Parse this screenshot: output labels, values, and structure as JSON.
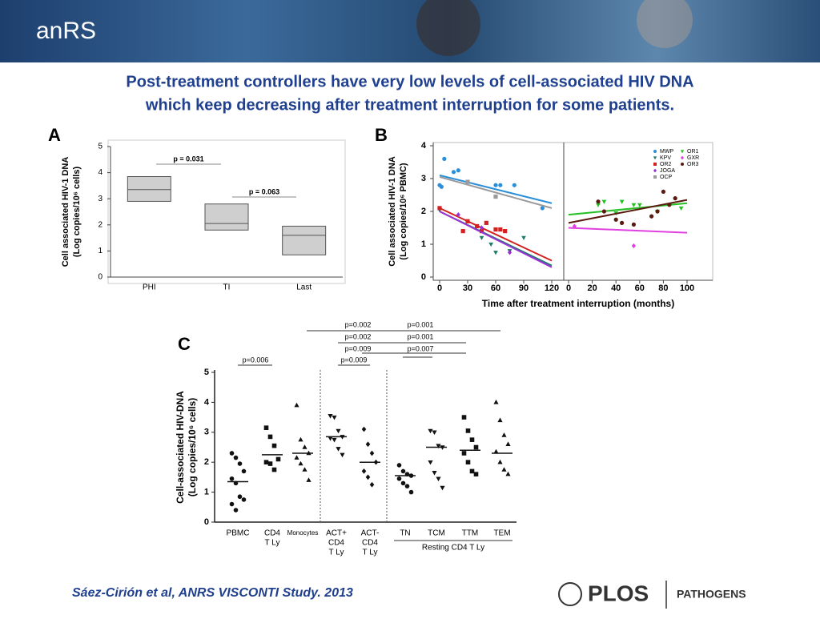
{
  "header": {
    "logo": "anRS"
  },
  "title": [
    "Post-treatment controllers have very low levels of cell-associated HIV DNA",
    "which keep decreasing after treatment interruption for some patients."
  ],
  "chart_data": [
    {
      "type": "box",
      "panel_label": "A",
      "ylabel": [
        "Cell associated HIV-1 DNA",
        "(Log copies/10⁶ cells)"
      ],
      "categories": [
        "PHI",
        "TI",
        "Last"
      ],
      "low": [
        2.9,
        1.8,
        0.85
      ],
      "high": [
        3.85,
        2.8,
        1.95
      ],
      "median": [
        3.35,
        2.05,
        1.6
      ],
      "color": "#cfcfcf",
      "ylim": [
        0,
        5
      ],
      "yticks": [
        0,
        1,
        2,
        3,
        4,
        5
      ],
      "annotations": [
        "p = 0.031",
        "p = 0.063"
      ]
    },
    {
      "type": "scatter",
      "panel_label": "B",
      "ylabel": [
        "Cell associated HIV-1 DNA",
        "(Log copies/10⁶ PBMC)"
      ],
      "xlabel": "Time after treatment interruption (months)",
      "ylim": [
        0,
        4
      ],
      "yticks": [
        0,
        1,
        2,
        3,
        4
      ],
      "subplots": [
        {
          "xlim": [
            0,
            120
          ],
          "xticks": [
            0,
            30,
            60,
            90,
            120
          ],
          "series": [
            {
              "name": "MWP",
              "color": "#2b8fd8",
              "marker": "circle",
              "x": [
                0,
                2,
                5,
                15,
                20,
                60,
                65,
                80,
                110
              ],
              "values": [
                2.8,
                2.75,
                3.6,
                3.2,
                3.25,
                2.8,
                2.8,
                2.8,
                2.1
              ],
              "fit": {
                "x": [
                  0,
                  120
                ],
                "values": [
                  3.1,
                  2.25
                ]
              }
            },
            {
              "name": "KPV",
              "color": "#1e7a6a",
              "marker": "tri-down",
              "x": [
                0,
                45,
                55,
                60,
                75,
                90
              ],
              "values": [
                2.05,
                1.2,
                1.0,
                0.75,
                0.8,
                1.2
              ],
              "fit": {
                "x": [
                  0,
                  120
                ],
                "values": [
                  2.0,
                  0.35
                ]
              }
            },
            {
              "name": "OR2",
              "color": "#d42020",
              "marker": "square",
              "x": [
                0,
                25,
                30,
                40,
                45,
                50,
                60,
                65,
                70
              ],
              "values": [
                2.1,
                1.4,
                1.7,
                1.55,
                1.4,
                1.65,
                1.45,
                1.45,
                1.4
              ],
              "fit": {
                "x": [
                  0,
                  120
                ],
                "values": [
                  2.1,
                  0.5
                ]
              }
            },
            {
              "name": "JOGA",
              "color": "#9b30d9",
              "marker": "diamond",
              "x": [
                20,
                45,
                75
              ],
              "values": [
                1.9,
                1.5,
                0.75
              ],
              "fit": {
                "x": [
                  0,
                  120
                ],
                "values": [
                  2.0,
                  0.3
                ]
              }
            },
            {
              "name": "OCP",
              "color": "#9a9a9a",
              "marker": "square",
              "x": [
                30,
                60
              ],
              "values": [
                2.9,
                2.45
              ],
              "fit": {
                "x": [
                  0,
                  120
                ],
                "values": [
                  3.05,
                  2.1
                ]
              }
            }
          ]
        },
        {
          "xlim": [
            0,
            100
          ],
          "xticks": [
            0,
            20,
            40,
            60,
            80,
            100
          ],
          "series": [
            {
              "name": "OR1",
              "color": "#22c022",
              "marker": "tri-down",
              "x": [
                25,
                30,
                40,
                45,
                55,
                60,
                75,
                95
              ],
              "values": [
                2.2,
                2.3,
                1.95,
                2.3,
                2.2,
                2.2,
                2.0,
                2.1
              ],
              "fit": {
                "x": [
                  0,
                  100
                ],
                "values": [
                  1.9,
                  2.25
                ]
              }
            },
            {
              "name": "GXR",
              "color": "#e040e0",
              "marker": "diamond",
              "x": [
                5,
                55
              ],
              "values": [
                1.55,
                0.95
              ],
              "fit": {
                "x": [
                  0,
                  100
                ],
                "values": [
                  1.5,
                  1.35
                ]
              }
            },
            {
              "name": "OR3",
              "color": "#5a1a10",
              "marker": "circle",
              "x": [
                25,
                30,
                40,
                45,
                55,
                70,
                75,
                80,
                85,
                90
              ],
              "values": [
                2.3,
                2.0,
                1.75,
                1.65,
                1.6,
                1.85,
                2.0,
                2.6,
                2.2,
                2.4
              ],
              "fit": {
                "x": [
                  0,
                  100
                ],
                "values": [
                  1.65,
                  2.35
                ]
              }
            }
          ]
        }
      ]
    },
    {
      "type": "dot",
      "panel_label": "C",
      "ylabel": [
        "Cell-associated HIV-DNA",
        "(Log copies/10⁶ cells)"
      ],
      "categories": [
        [
          "PBMC"
        ],
        [
          "CD4",
          "T Ly"
        ],
        [
          "Monocytes"
        ],
        [
          "ACT+",
          "CD4",
          "T  Ly"
        ],
        [
          "ACT-",
          "CD4",
          "T  Ly"
        ],
        [
          "TN"
        ],
        [
          "TCM"
        ],
        [
          "TTM"
        ],
        [
          "TEM"
        ]
      ],
      "group_label": "Resting CD4 T Ly",
      "markers": [
        "circle",
        "square",
        "tri-up",
        "tri-down",
        "diamond",
        "circle",
        "tri-down",
        "square",
        "tri-up"
      ],
      "color": "#111111",
      "values": [
        [
          2.3,
          2.15,
          1.95,
          1.7,
          1.45,
          1.3,
          0.85,
          0.75,
          0.6,
          0.4
        ],
        [
          3.15,
          2.85,
          2.55,
          2.1,
          2.0,
          1.95,
          1.75
        ],
        [
          3.9,
          2.75,
          2.5,
          2.3,
          2.15,
          1.95,
          1.75,
          1.4
        ],
        [
          3.55,
          3.5,
          3.05,
          2.85,
          2.8,
          2.75,
          2.45,
          2.25
        ],
        [
          3.1,
          2.6,
          2.3,
          2.0,
          1.7,
          1.5,
          1.25
        ],
        [
          1.9,
          1.7,
          1.6,
          1.55,
          1.45,
          1.3,
          1.2,
          1.0
        ],
        [
          3.05,
          3.0,
          2.55,
          2.5,
          2.0,
          1.65,
          1.45,
          1.15
        ],
        [
          3.5,
          3.05,
          2.75,
          2.5,
          2.3,
          2.0,
          1.7,
          1.6
        ],
        [
          4.0,
          3.4,
          2.9,
          2.6,
          2.35,
          2.0,
          1.75,
          1.6
        ]
      ],
      "medians": [
        1.35,
        2.25,
        2.3,
        2.85,
        2.0,
        1.55,
        2.5,
        2.4,
        2.3
      ],
      "ylim": [
        0,
        5
      ],
      "yticks": [
        0,
        1,
        2,
        3,
        4,
        5
      ],
      "annotations": [
        "p=0.006",
        "p=0.009",
        "p=0.002",
        "p=0.001",
        "p=0.002",
        "p=0.001",
        "p=0.009",
        "p=0.007"
      ]
    }
  ],
  "footer": {
    "citation": "Sáez-Cirión  et al, ANRS VISCONTI Study. 2013",
    "logo": "PLOS",
    "journal": "PATHOGENS"
  }
}
